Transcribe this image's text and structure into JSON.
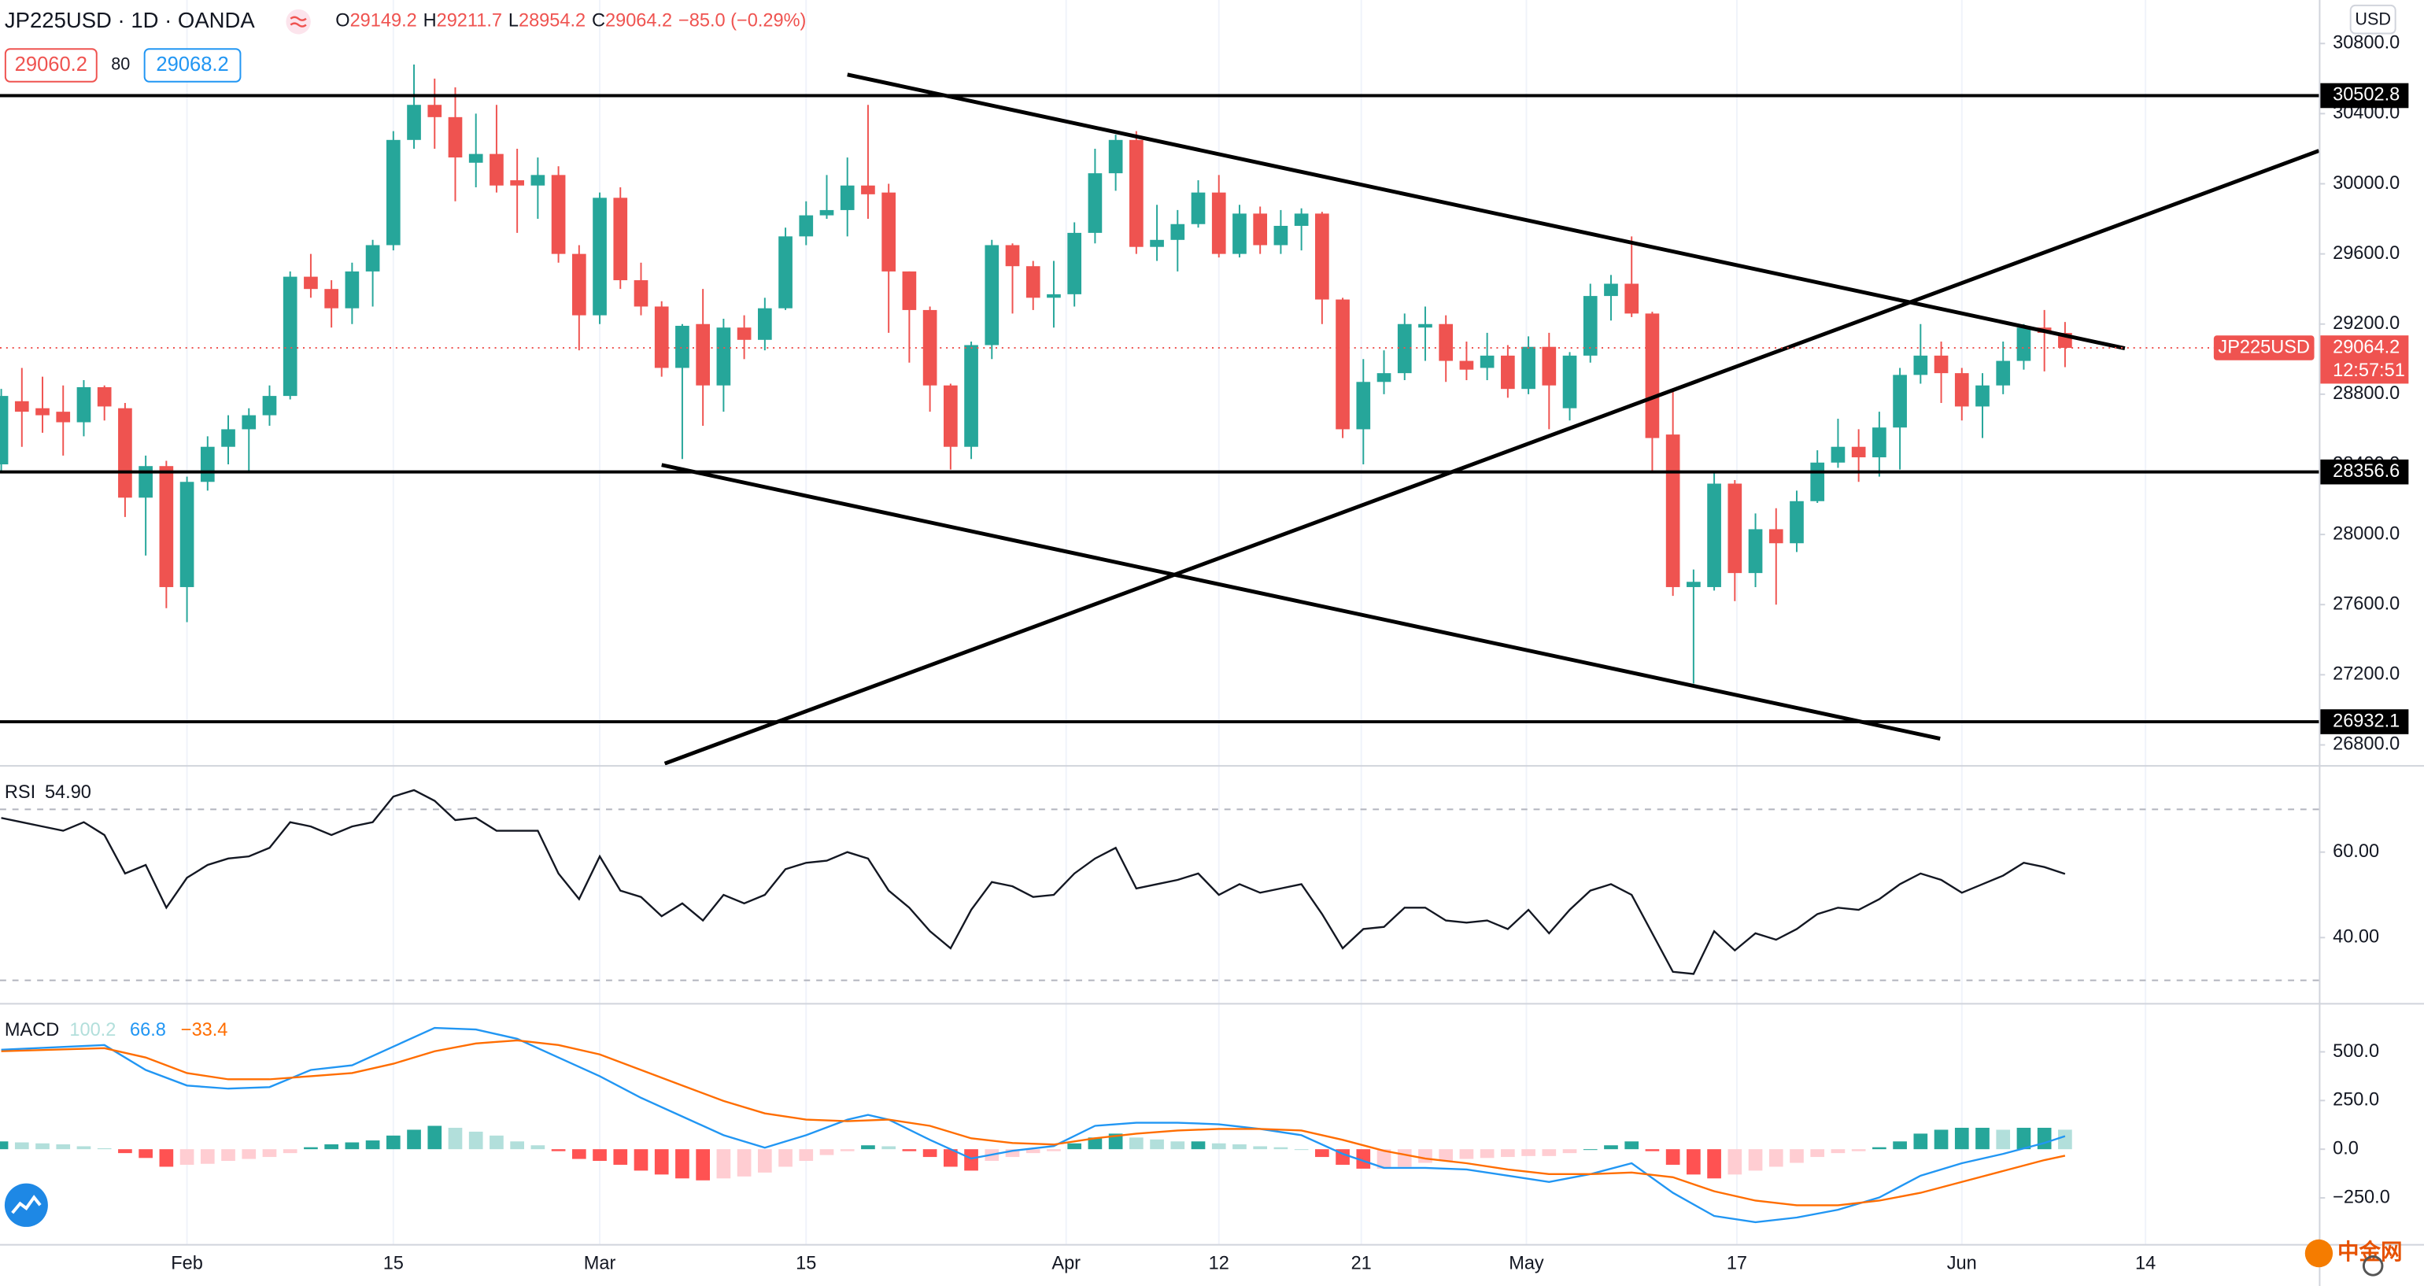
{
  "chart_data": [
    {
      "type": "candlestick",
      "title": "JP225USD · 1D · OANDA",
      "symbol": "JP225USD",
      "ohlc_keys": [
        "O",
        "H",
        "L",
        "C"
      ],
      "change": "−85.0 (−0.29%)",
      "bid": 29060.2,
      "spread": 80,
      "ask": 29068.2,
      "currency": "USD",
      "countdown": "12:57:51",
      "watermark": "中金网",
      "up_color": "#26a69a",
      "down_color": "#ef5350",
      "open": [
        28400,
        28760,
        28720,
        28700,
        28640,
        28840,
        28720,
        28210,
        28390,
        27700,
        28300,
        28500,
        28600,
        28680,
        28790,
        29470,
        29400,
        29290,
        29500,
        29650,
        30250,
        30450,
        30380,
        30120,
        30170,
        30020,
        29990,
        30050,
        29600,
        29250,
        29920,
        29450,
        29300,
        28950,
        29200,
        28850,
        29180,
        29110,
        29290,
        29700,
        29820,
        29850,
        29990,
        29950,
        29500,
        29280,
        28850,
        28500,
        29080,
        29650,
        29530,
        29350,
        29370,
        29720,
        30060,
        30250,
        29640,
        29680,
        29770,
        29950,
        29600,
        29830,
        29650,
        29760,
        29830,
        29340,
        28600,
        28870,
        28920,
        29180,
        29200,
        28990,
        28950,
        29020,
        28830,
        29070,
        28720,
        29020,
        29360,
        29430,
        29260,
        28570,
        27700,
        27700,
        28290,
        27780,
        28030,
        27950,
        28190,
        28410,
        28500,
        28440,
        28610,
        28910,
        29020,
        28920,
        28730,
        28850,
        28990,
        29180,
        29149.2
      ],
      "high": [
        28830,
        28950,
        28900,
        28850,
        28880,
        28850,
        28750,
        28450,
        28420,
        28330,
        28560,
        28680,
        28720,
        28850,
        29500,
        29600,
        29450,
        29550,
        29680,
        30300,
        30680,
        30600,
        30550,
        30400,
        30450,
        30200,
        30150,
        30100,
        29650,
        29950,
        29980,
        29550,
        29330,
        29200,
        29400,
        29230,
        29250,
        29350,
        29750,
        29900,
        30050,
        30150,
        30450,
        30000,
        29500,
        29300,
        28860,
        29100,
        29680,
        29660,
        29560,
        29560,
        29780,
        30200,
        30280,
        30300,
        29880,
        29850,
        30020,
        30050,
        29880,
        29870,
        29850,
        29860,
        29840,
        29350,
        29000,
        29050,
        29260,
        29300,
        29250,
        29100,
        29150,
        29080,
        29130,
        29150,
        29040,
        29430,
        29480,
        29700,
        29270,
        28820,
        27800,
        28350,
        28310,
        28120,
        28150,
        28250,
        28480,
        28660,
        28600,
        28700,
        28950,
        29200,
        29100,
        28950,
        28920,
        29100,
        29200,
        29280,
        29211.7
      ],
      "low": [
        28350,
        28500,
        28580,
        28450,
        28560,
        28650,
        28100,
        27880,
        27580,
        27500,
        28250,
        28400,
        28350,
        28620,
        28770,
        29350,
        29180,
        29200,
        29300,
        29620,
        30200,
        30200,
        29900,
        29980,
        29950,
        29720,
        29800,
        29550,
        29050,
        29200,
        29400,
        29250,
        28900,
        28430,
        28620,
        28700,
        29000,
        29050,
        29280,
        29650,
        29800,
        29700,
        29800,
        29150,
        28980,
        28700,
        28370,
        28430,
        29000,
        29260,
        29280,
        29180,
        29300,
        29660,
        29960,
        29600,
        29560,
        29500,
        29750,
        29580,
        29580,
        29600,
        29600,
        29620,
        29200,
        28550,
        28400,
        28800,
        28880,
        28990,
        28870,
        28880,
        28880,
        28780,
        28800,
        28600,
        28650,
        28980,
        29220,
        29240,
        28350,
        27650,
        27150,
        27680,
        27620,
        27700,
        27600,
        27900,
        28180,
        28380,
        28300,
        28330,
        28370,
        28860,
        28750,
        28650,
        28550,
        28800,
        28940,
        28930,
        28954.2
      ],
      "close": [
        28790,
        28700,
        28680,
        28640,
        28840,
        28730,
        28210,
        28390,
        27700,
        28300,
        28500,
        28600,
        28680,
        28790,
        29470,
        29400,
        29290,
        29500,
        29650,
        30250,
        30450,
        30380,
        30150,
        30170,
        29990,
        29990,
        30050,
        29600,
        29250,
        29920,
        29450,
        29300,
        28950,
        29190,
        28850,
        29180,
        29110,
        29290,
        29700,
        29820,
        29850,
        29990,
        29940,
        29500,
        29280,
        28850,
        28500,
        29080,
        29650,
        29530,
        29350,
        29370,
        29720,
        30060,
        30250,
        29640,
        29680,
        29770,
        29950,
        29600,
        29830,
        29650,
        29760,
        29830,
        29340,
        28600,
        28870,
        28920,
        29200,
        29200,
        28990,
        28940,
        29020,
        28830,
        29070,
        28850,
        29020,
        29360,
        29430,
        29260,
        28550,
        27700,
        27730,
        28290,
        27780,
        28030,
        27950,
        28190,
        28410,
        28500,
        28440,
        28610,
        28910,
        29020,
        28920,
        28730,
        28850,
        28990,
        29180,
        29150,
        29064.2
      ],
      "xlim": [
        -0.06,
        112.3
      ],
      "xticks": [
        {
          "value": 9,
          "label": "Feb"
        },
        {
          "value": 19,
          "label": "15"
        },
        {
          "value": 29,
          "label": "Mar"
        },
        {
          "value": 39,
          "label": "15"
        },
        {
          "value": 51.6,
          "label": "Apr"
        },
        {
          "value": 59,
          "label": "12"
        },
        {
          "value": 65.9,
          "label": "21"
        },
        {
          "value": 73.9,
          "label": "May"
        },
        {
          "value": 84.1,
          "label": "17"
        },
        {
          "value": 95,
          "label": "Jun"
        },
        {
          "value": 103.9,
          "label": "14"
        }
      ],
      "ylim": [
        26685,
        31048
      ],
      "yticks": [
        {
          "value": 26800,
          "label": "26800.0"
        },
        {
          "value": 27200,
          "label": "27200.0"
        },
        {
          "value": 27600,
          "label": "27600.0"
        },
        {
          "value": 28000,
          "label": "28000.0"
        },
        {
          "value": 28400,
          "label": "28400.0"
        },
        {
          "value": 28800,
          "label": "28800.0"
        },
        {
          "value": 29200,
          "label": "29200.0"
        },
        {
          "value": 29600,
          "label": "29600.0"
        },
        {
          "value": 30000,
          "label": "30000.0"
        },
        {
          "value": 30400,
          "label": "30400.0"
        },
        {
          "value": 30800,
          "label": "30800.0"
        }
      ],
      "grid": "x",
      "hlines": [
        30502.8,
        28356.6,
        26932.1
      ],
      "trendlines": [
        {
          "x": [
            41.0,
            102.9
          ],
          "y": [
            30622.6,
            29061.6
          ]
        },
        {
          "x": [
            32.15,
            112.3
          ],
          "y": [
            26693.6,
            30188
          ]
        },
        {
          "x": [
            32.0,
            93.95
          ],
          "y": [
            28396.5,
            26835.5
          ]
        }
      ]
    },
    {
      "type": "rsi",
      "title": "RSI",
      "legend_value": "54.90",
      "color": "#131722",
      "values": [
        68,
        67,
        66,
        65,
        67,
        64,
        55,
        57,
        47,
        54,
        57,
        58.5,
        59,
        61,
        67,
        66,
        64,
        66,
        67,
        73,
        74.5,
        72,
        67.5,
        68,
        65,
        65,
        65,
        55,
        49,
        59,
        51,
        49.5,
        45,
        48,
        44,
        50,
        48,
        50,
        56,
        57.5,
        58,
        60,
        58.5,
        51,
        47,
        41.5,
        37.5,
        46.5,
        53,
        52,
        49.5,
        50,
        55,
        58.5,
        61,
        51.5,
        52.5,
        53.5,
        55,
        50,
        52.5,
        50.5,
        51.5,
        52.5,
        45.5,
        37.5,
        42,
        42.5,
        47,
        47,
        44,
        43.5,
        44,
        42,
        46.5,
        41,
        46.5,
        51,
        52.5,
        50,
        41,
        32,
        31.5,
        41.5,
        37,
        41,
        39.5,
        42,
        45.5,
        47,
        46.5,
        49,
        52.5,
        55,
        53.5,
        50.5,
        52.5,
        54.5,
        57.5,
        56.5,
        54.9
      ],
      "ylim": [
        24.7,
        80
      ],
      "yticks": [
        {
          "value": 40,
          "label": "40.00"
        },
        {
          "value": 60,
          "label": "60.00"
        }
      ],
      "bands": [
        30,
        70
      ]
    },
    {
      "type": "macd",
      "title": "MACD",
      "signal_label": "−33.4",
      "histogram": [
        40,
        35,
        30,
        25,
        15,
        5,
        -20,
        -45,
        -90,
        -80,
        -75,
        -60,
        -50,
        -40,
        -20,
        10,
        25,
        35,
        45,
        70,
        100,
        120,
        110,
        90,
        70,
        40,
        20,
        -10,
        -50,
        -60,
        -80,
        -110,
        -130,
        -150,
        -160,
        -150,
        -140,
        -120,
        -90,
        -60,
        -30,
        -10,
        20,
        15,
        -10,
        -40,
        -90,
        -110,
        -60,
        -40,
        -20,
        -10,
        30,
        60,
        80,
        60,
        50,
        40,
        40,
        30,
        25,
        15,
        10,
        0,
        -40,
        -80,
        -100,
        -100,
        -90,
        -70,
        -60,
        -50,
        -45,
        -40,
        -35,
        -35,
        -20,
        0,
        20,
        40,
        -10,
        -80,
        -130,
        -150,
        -130,
        -110,
        -90,
        -70,
        -40,
        -20,
        -10,
        10,
        40,
        80,
        100,
        110,
        110,
        100,
        110,
        110,
        100.2
      ],
      "histogram_colors": [
        "#26a69a",
        "#b2dfdb",
        "#ff5252",
        "#ffcdd2"
      ],
      "x": [
        0,
        5,
        7,
        9,
        11,
        13,
        15,
        17,
        19,
        21,
        23,
        25,
        27,
        29,
        31,
        33,
        35,
        37,
        39,
        41,
        42,
        43,
        45,
        47,
        49,
        51,
        53,
        55,
        57,
        59,
        61,
        63,
        65,
        67,
        69,
        71,
        73,
        75,
        77,
        79,
        81,
        83,
        85,
        87,
        89,
        91,
        93,
        95,
        97,
        99,
        100
      ],
      "series": [
        {
          "color": "#2196f3",
          "values": [
            511,
            535,
            407,
            327,
            311,
            319,
            407,
            431,
            527,
            623,
            615,
            567,
            471,
            375,
            264,
            168,
            72,
            8,
            72,
            152,
            176,
            152,
            48,
            -48,
            -8,
            16,
            120,
            136,
            136,
            128,
            104,
            72,
            -24,
            -96,
            -96,
            -104,
            -136,
            -168,
            -128,
            -72,
            -224,
            -343,
            -375,
            -351,
            -311,
            -248,
            -136,
            -72,
            -24,
            32,
            66.8
          ]
        },
        {
          "color": "#ff6d00",
          "values": [
            503,
            519,
            471,
            391,
            359,
            359,
            375,
            391,
            439,
            503,
            543,
            559,
            535,
            487,
            407,
            327,
            248,
            184,
            152,
            144,
            148,
            152,
            120,
            56,
            32,
            24,
            56,
            80,
            96,
            104,
            104,
            96,
            48,
            -8,
            -48,
            -72,
            -104,
            -128,
            -128,
            -120,
            -144,
            -216,
            -264,
            -288,
            -288,
            -264,
            -224,
            -168,
            -112,
            -56,
            -33.4
          ]
        }
      ],
      "ylim": [
        -487,
        743
      ],
      "yticks": [
        {
          "value": 500,
          "label": "500.0"
        },
        {
          "value": 250,
          "label": "250.0"
        },
        {
          "value": 0,
          "label": "0.0"
        },
        {
          "value": -250,
          "label": "−250.0"
        }
      ]
    }
  ]
}
